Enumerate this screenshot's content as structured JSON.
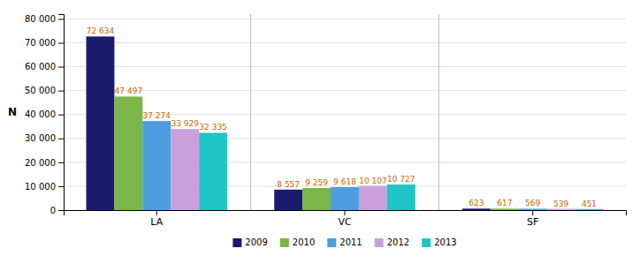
{
  "chart_data": {
    "type": "bar",
    "ylabel": "N",
    "categories": [
      "LA",
      "VC",
      "SF"
    ],
    "series": [
      {
        "name": "2009",
        "color": "#1a1a6e",
        "values": [
          72634,
          8557,
          623
        ],
        "value_labels": [
          "72 634",
          "8 557",
          "623"
        ]
      },
      {
        "name": "2010",
        "color": "#7ab648",
        "values": [
          47497,
          9259,
          617
        ],
        "value_labels": [
          "47 497",
          "9 259",
          "617"
        ]
      },
      {
        "name": "2011",
        "color": "#4d9de0",
        "values": [
          37274,
          9618,
          569
        ],
        "value_labels": [
          "37 274",
          "9 618",
          "569"
        ]
      },
      {
        "name": "2012",
        "color": "#c9a0dc",
        "values": [
          33929,
          10107,
          539
        ],
        "value_labels": [
          "33 929",
          "10 107",
          "539"
        ]
      },
      {
        "name": "2013",
        "color": "#20c5c5",
        "values": [
          32335,
          10727,
          451
        ],
        "value_labels": [
          "32 335",
          "10 727",
          "451"
        ]
      }
    ],
    "ylim": [
      0,
      82000
    ],
    "yticks": [
      0,
      {
        "value": 10000,
        "label": "10 000"
      },
      {
        "value": 20000,
        "label": "20 000"
      },
      {
        "value": 30000,
        "label": "30 000"
      },
      {
        "value": 40000,
        "label": "40 000"
      },
      {
        "value": 50000,
        "label": "50 000"
      },
      {
        "value": 60000,
        "label": "60 000"
      },
      {
        "value": 70000,
        "label": "70 000"
      },
      {
        "value": 80000,
        "label": "80 000"
      }
    ],
    "grid": true,
    "legend": "bottom",
    "data_labels": true
  }
}
